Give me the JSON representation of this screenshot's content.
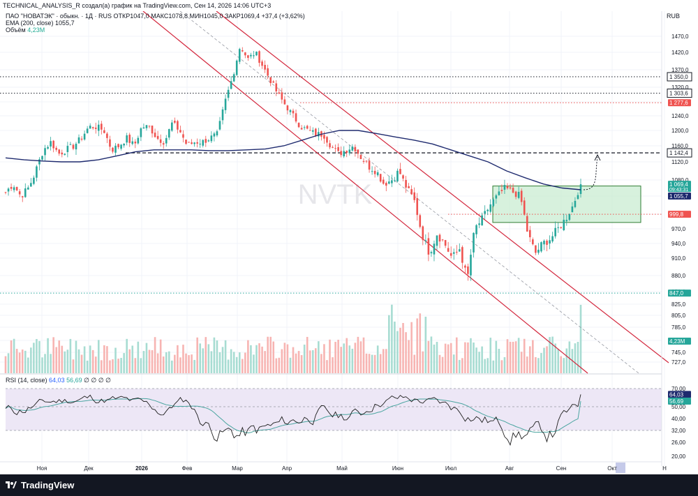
{
  "header": {
    "text": "TECHNICAL_ANALYSIS_R создал(а) график на TradingView.com, Сен 14, 2026 14:06 UTC+3"
  },
  "legend": {
    "ohlc": "ПАО \"НОВАТЭК\" · обыкн. · 1Д · RUS  ОТКР1047,0  МАКС1078,8  МИН1045,0  ЗАКР1069,4  +37,4 (+3,62%)",
    "ema_label": "EMA (200, close)",
    "ema_value": "1055,7",
    "volume_label": "Объём",
    "volume_value": "4,23M",
    "rsi_label": "RSI (14, close)",
    "rsi_value": "64,03",
    "rsi_ma_value": "56,69",
    "rsi_tail": "∅ ∅ ∅ ∅"
  },
  "currency": "RUB",
  "watermark": "NVTK",
  "footer": {
    "brand": "TradingView"
  },
  "colors": {
    "up": "#26a69a",
    "down": "#ef5350",
    "ema": "#1e2a6e",
    "channel": "#d3263c",
    "box_fill": "#c9ecd1",
    "box_border": "#2e7d32",
    "rsi_line": "#1e1e1e",
    "rsi_ma": "#4aa5a0",
    "rsi_band": "#ede7f6"
  },
  "chart_data": [
    {
      "type": "candlestick",
      "ylim": [
        710,
        1500
      ],
      "y_ticks": [
        "1470,0",
        "1420,0",
        "1370,0",
        "1320,0",
        "1280,0",
        "1240,0",
        "1200,0",
        "1160,0",
        "1120,0",
        "1080,0",
        "1040,0",
        "1000,0",
        "970,0",
        "940,0",
        "910,0",
        "880,0",
        "850,0",
        "825,0",
        "805,0",
        "785,0",
        "765,0",
        "745,0",
        "727,0"
      ],
      "x_labels": [
        "Ноя",
        "Дек",
        "2026",
        "Фев",
        "Мар",
        "Апр",
        "Май",
        "Июн",
        "Июл",
        "Авг",
        "Сен",
        "Окт",
        "Н"
      ],
      "close_path": [
        1050,
        1070,
        1040,
        1060,
        1100,
        1150,
        1170,
        1140,
        1150,
        1160,
        1180,
        1210,
        1210,
        1200,
        1150,
        1160,
        1180,
        1160,
        1210,
        1210,
        1180,
        1170,
        1220,
        1200,
        1160,
        1170,
        1170,
        1180,
        1190,
        1280,
        1350,
        1440,
        1400,
        1420,
        1380,
        1340,
        1300,
        1270,
        1240,
        1210,
        1200,
        1190,
        1190,
        1160,
        1140,
        1150,
        1160,
        1130,
        1110,
        1100,
        1070,
        1080,
        1100,
        1060,
        1030,
        960,
        920,
        960,
        940,
        910,
        930,
        870,
        970,
        990,
        1020,
        1040,
        1060,
        1050,
        1040,
        960,
        920,
        940,
        950,
        970,
        990,
        1020,
        1069.4
      ],
      "ema_path": [
        1130,
        1125,
        1122,
        1120,
        1120,
        1125,
        1135,
        1145,
        1150,
        1150,
        1150,
        1148,
        1148,
        1150,
        1152,
        1160,
        1175,
        1190,
        1200,
        1200,
        1192,
        1183,
        1175,
        1165,
        1150,
        1135,
        1120,
        1100,
        1085,
        1070,
        1060,
        1055.7
      ],
      "price_labels": [
        {
          "value": 1350.0,
          "label": "1 350,0",
          "style": "dotted",
          "color": "#131722"
        },
        {
          "value": 1303.6,
          "label": "1 303,6",
          "style": "dotted",
          "color": "#131722"
        },
        {
          "value": 1277.6,
          "label": "1 277,6",
          "style": "dotted",
          "color": "#ef5350"
        },
        {
          "value": 1142.4,
          "label": "1 142,4",
          "style": "dashed",
          "color": "#131722"
        },
        {
          "value": 1069.4,
          "label": "1 069,4",
          "sublabel": "09:43:31",
          "color": "#26a69a"
        },
        {
          "value": 1055.7,
          "label": "1 055,7",
          "color": "#1e2a6e"
        },
        {
          "value": 999.8,
          "label": "999,8",
          "style": "dotted",
          "color": "#ef5350"
        },
        {
          "value": 847.0,
          "label": "847,0",
          "style": "dotted",
          "color": "#26a69a"
        },
        {
          "value": 4.23,
          "label": "4,23M",
          "color": "#26a69a"
        }
      ],
      "box": {
        "high": 1065,
        "low": 983
      }
    },
    {
      "type": "line",
      "name": "RSI (14, close)",
      "ylim": [
        18,
        74
      ],
      "y_ticks": [
        "70,00",
        "60,00",
        "50,00",
        "40,00",
        "32,00",
        "26,00",
        "20,00"
      ],
      "band": [
        32,
        70
      ],
      "price_labels": [
        {
          "value": 64.03,
          "label": "64,03",
          "color": "#131722"
        },
        {
          "value": 56.69,
          "label": "56,69",
          "color": "#26a69a"
        }
      ]
    }
  ]
}
